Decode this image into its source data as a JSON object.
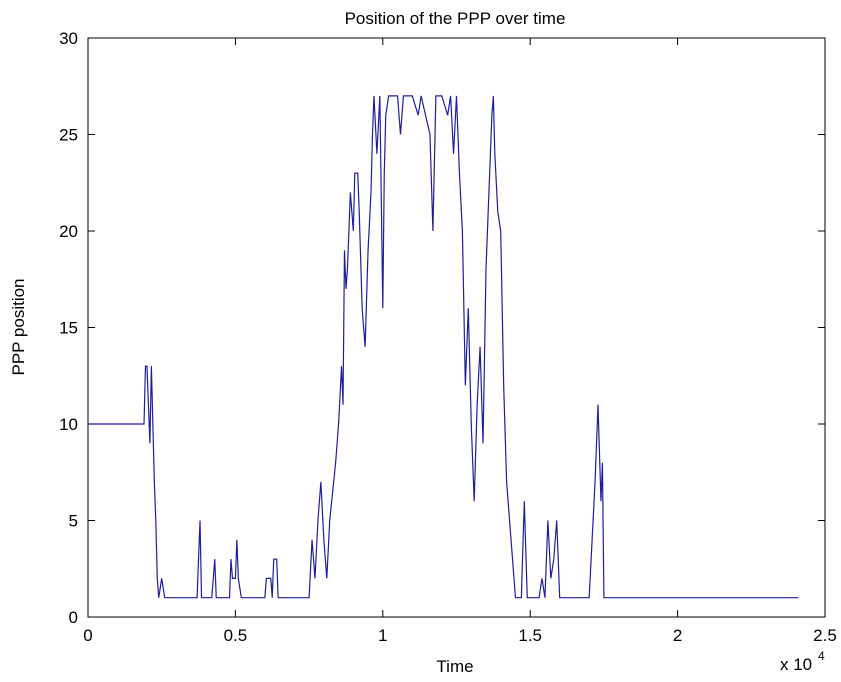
{
  "chart_data": {
    "type": "line",
    "title": "Position of the PPP over time",
    "xlabel": "Time",
    "ylabel": "PPP position",
    "x_scale_base": "x 10",
    "x_scale_exp": "4",
    "xlim": [
      0,
      2.5
    ],
    "xticks": [
      0,
      0.5,
      1,
      1.5,
      2,
      2.5
    ],
    "ylim": [
      0,
      30
    ],
    "yticks": [
      0,
      5,
      10,
      15,
      20,
      25,
      30
    ],
    "grid": false,
    "x": [
      0,
      0.19,
      0.195,
      0.2,
      0.205,
      0.21,
      0.215,
      0.22,
      0.225,
      0.23,
      0.235,
      0.24,
      0.25,
      0.26,
      0.37,
      0.38,
      0.385,
      0.42,
      0.43,
      0.435,
      0.48,
      0.485,
      0.49,
      0.5,
      0.505,
      0.51,
      0.52,
      0.6,
      0.605,
      0.62,
      0.625,
      0.63,
      0.64,
      0.645,
      0.75,
      0.76,
      0.77,
      0.78,
      0.79,
      0.8,
      0.81,
      0.82,
      0.84,
      0.85,
      0.86,
      0.865,
      0.87,
      0.875,
      0.88,
      0.89,
      0.9,
      0.905,
      0.915,
      0.92,
      0.93,
      0.94,
      0.95,
      0.96,
      0.965,
      0.97,
      0.98,
      0.99,
      1.0,
      1.005,
      1.01,
      1.02,
      1.05,
      1.06,
      1.07,
      1.1,
      1.12,
      1.13,
      1.16,
      1.17,
      1.18,
      1.2,
      1.22,
      1.23,
      1.24,
      1.25,
      1.26,
      1.27,
      1.28,
      1.29,
      1.3,
      1.31,
      1.32,
      1.33,
      1.34,
      1.35,
      1.36,
      1.37,
      1.375,
      1.38,
      1.39,
      1.4,
      1.41,
      1.42,
      1.43,
      1.44,
      1.45,
      1.47,
      1.48,
      1.49,
      1.53,
      1.54,
      1.55,
      1.56,
      1.57,
      1.58,
      1.59,
      1.6,
      1.7,
      1.71,
      1.72,
      1.73,
      1.74,
      1.745,
      1.75,
      2.41
    ],
    "series": [
      {
        "name": "PPP position",
        "color": "#1f1f99",
        "values": [
          10,
          10,
          13,
          13,
          11,
          9,
          13,
          10,
          7,
          5,
          2,
          1,
          2,
          1,
          1,
          5,
          1,
          1,
          3,
          1,
          1,
          3,
          2,
          2,
          4,
          2,
          1,
          1,
          2,
          2,
          1,
          3,
          3,
          1,
          1,
          4,
          2,
          5,
          7,
          4,
          2,
          5,
          8,
          10,
          13,
          11,
          19,
          17,
          18,
          22,
          20,
          23,
          23,
          21,
          16,
          14,
          19,
          22,
          25,
          27,
          24,
          27,
          16,
          23,
          26,
          27,
          27,
          25,
          27,
          27,
          26,
          27,
          25,
          20,
          27,
          27,
          26,
          27,
          24,
          27,
          23,
          20,
          12,
          16,
          10,
          6,
          11,
          14,
          9,
          18,
          22,
          26,
          27,
          24,
          21,
          20,
          12,
          7,
          5,
          3,
          1,
          1,
          6,
          1,
          1,
          2,
          1,
          5,
          2,
          3,
          5,
          1,
          1,
          4,
          7,
          11,
          6,
          8,
          1,
          1
        ]
      }
    ]
  }
}
